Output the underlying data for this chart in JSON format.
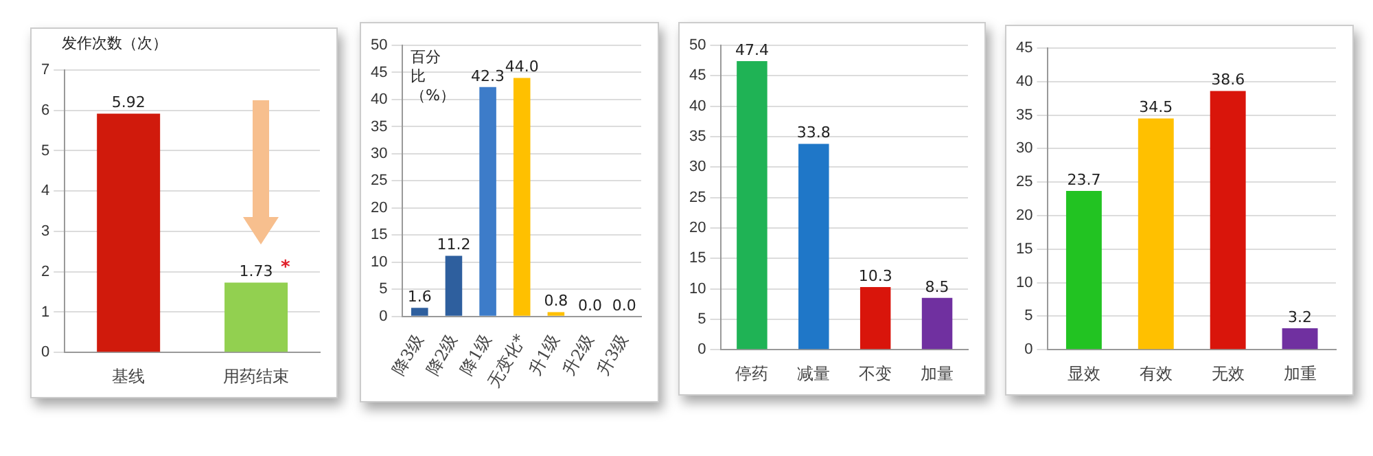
{
  "chart_data": [
    {
      "type": "bar",
      "ylabel": "发作次数（次）",
      "categories": [
        "基线",
        "用药结束"
      ],
      "values": [
        5.92,
        1.73
      ],
      "colors": [
        "#d01a0c",
        "#92d050"
      ],
      "ylim": [
        0,
        7
      ],
      "yticks": [
        0,
        1,
        2,
        3,
        4,
        5,
        6,
        7
      ],
      "grid": "y",
      "data_labels": true,
      "annotations": [
        {
          "text": "*",
          "x": "用药结束",
          "y": 1.73
        }
      ]
    },
    {
      "type": "bar",
      "ylabel": "百分比（%）",
      "categories": [
        "降3级",
        "降2级",
        "降1级",
        "无变化*",
        "升1级",
        "升2级",
        "升3级"
      ],
      "values": [
        1.6,
        11.2,
        42.3,
        44.0,
        0.8,
        0.0,
        0.0
      ],
      "value_labels": [
        "1.6",
        "11.2",
        "42.3",
        "44.0",
        "0.8",
        "0.0",
        "0.0"
      ],
      "colors": [
        "#2e5f9e",
        "#2e5f9e",
        "#3d7cc9",
        "#ffc000",
        "#ffc000",
        "#ffc000",
        "#ffc000"
      ],
      "ylim": [
        0,
        50
      ],
      "yticks": [
        0,
        5,
        10,
        15,
        20,
        25,
        30,
        35,
        40,
        45,
        50
      ],
      "grid": "y"
    },
    {
      "type": "bar",
      "categories": [
        "停药",
        "减量",
        "不变",
        "加量"
      ],
      "values": [
        47.4,
        33.8,
        10.3,
        8.5
      ],
      "colors": [
        "#1fb355",
        "#1f77c8",
        "#d9150b",
        "#7030a0"
      ],
      "ylim": [
        0,
        50
      ],
      "yticks": [
        0,
        5,
        10,
        15,
        20,
        25,
        30,
        35,
        40,
        45,
        50
      ],
      "grid": "y",
      "data_labels": true
    },
    {
      "type": "bar",
      "categories": [
        "显效",
        "有效",
        "无效",
        "加重"
      ],
      "values": [
        23.7,
        34.5,
        38.6,
        3.2
      ],
      "colors": [
        "#22c322",
        "#ffc000",
        "#d9150b",
        "#7030a0"
      ],
      "ylim": [
        0,
        45
      ],
      "yticks": [
        0,
        5,
        10,
        15,
        20,
        25,
        30,
        35,
        40,
        45
      ],
      "grid": "y",
      "data_labels": true
    }
  ]
}
